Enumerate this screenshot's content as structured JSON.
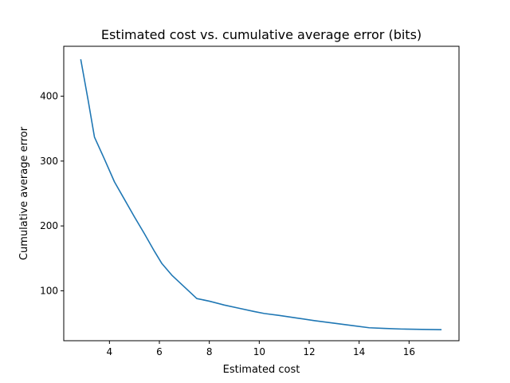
{
  "chart_data": {
    "type": "line",
    "title": "Estimated cost vs. cumulative average error (bits)",
    "xlabel": "Estimated cost",
    "ylabel": "Cumulative average error",
    "xlim": [
      2.17,
      18.0
    ],
    "ylim": [
      23.0,
      477.0
    ],
    "xticks": [
      4,
      6,
      8,
      10,
      12,
      14,
      16
    ],
    "yticks": [
      100,
      200,
      300,
      400
    ],
    "grid": false,
    "legend": "none",
    "series": [
      {
        "color": "#1f77b4",
        "x": [
          2.85,
          3.15,
          3.4,
          3.8,
          4.2,
          4.6,
          5.0,
          5.4,
          5.8,
          6.1,
          6.5,
          7.0,
          7.5,
          8.0,
          8.6,
          9.2,
          9.8,
          10.2,
          10.8,
          11.5,
          12.2,
          13.0,
          13.8,
          14.4,
          15.0,
          15.7,
          16.5,
          17.3
        ],
        "y": [
          457,
          393,
          337,
          303,
          268,
          241,
          214,
          188,
          161,
          142,
          124,
          106,
          88,
          84,
          78,
          73,
          68,
          65,
          62,
          58,
          54,
          50,
          46,
          43,
          42,
          41,
          40.5,
          40
        ]
      }
    ]
  }
}
